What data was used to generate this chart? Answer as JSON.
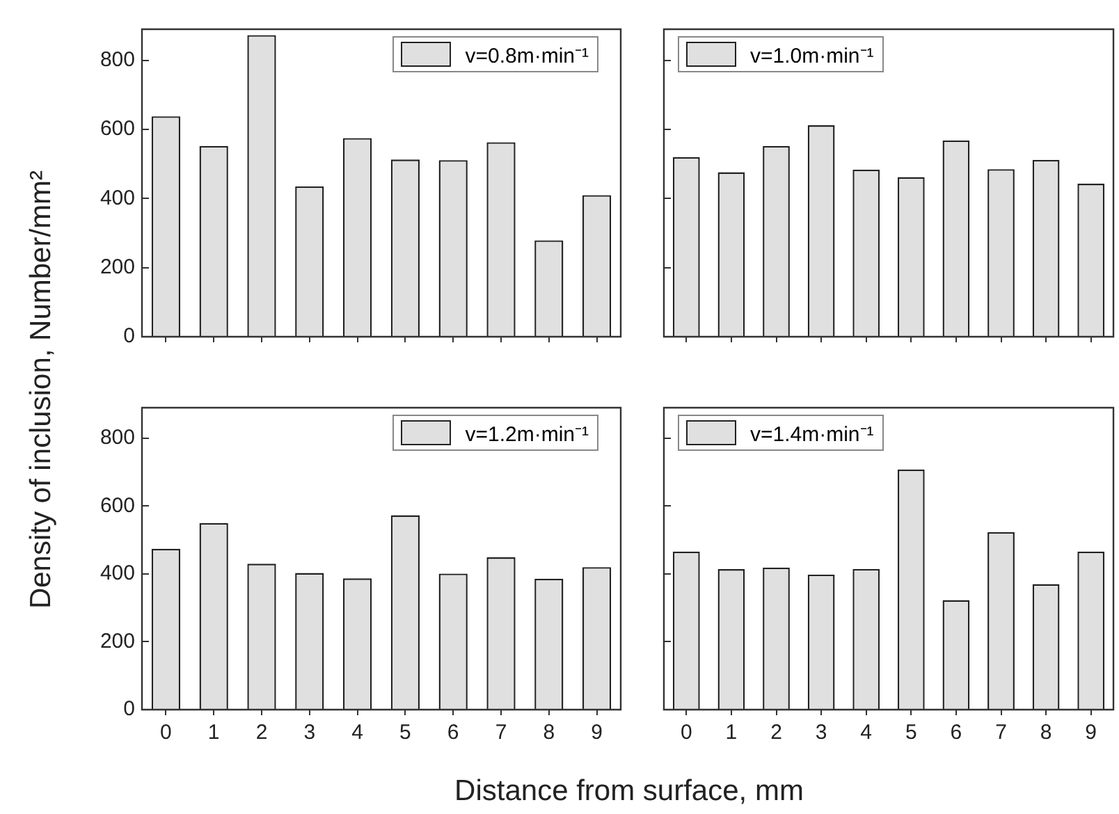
{
  "chart_data": [
    {
      "type": "bar",
      "categories": [
        "0",
        "1",
        "2",
        "3",
        "4",
        "5",
        "6",
        "7",
        "8",
        "9"
      ],
      "ylabel": "Density of inclusion, Number/mm²",
      "series": [
        {
          "name": "v=0.8m·min⁻¹",
          "color": "#e0e0e0",
          "values": [
            638,
            552,
            873,
            435,
            575,
            513,
            511,
            563,
            279,
            410
          ]
        }
      ],
      "ylim": [
        0,
        890
      ],
      "yticks": [
        0,
        200,
        400,
        600,
        800
      ],
      "legend": "top right",
      "tick_labels": "y"
    },
    {
      "type": "bar",
      "categories": [
        "0",
        "1",
        "2",
        "3",
        "4",
        "5",
        "6",
        "7",
        "8",
        "9"
      ],
      "series": [
        {
          "name": "v=1.0m·min⁻¹",
          "color": "#e0e0e0",
          "values": [
            520,
            476,
            552,
            612,
            484,
            462,
            568,
            485,
            512,
            443
          ]
        }
      ],
      "ylim": [
        0,
        890
      ],
      "yticks": [
        0,
        200,
        400,
        600,
        800
      ],
      "legend": "top left",
      "tick_labels": false
    },
    {
      "type": "bar",
      "categories": [
        "0",
        "1",
        "2",
        "3",
        "4",
        "5",
        "6",
        "7",
        "8",
        "9"
      ],
      "xlabel": "Distance from surface, mm",
      "series": [
        {
          "name": "v=1.2m·min⁻¹",
          "color": "#e0e0e0",
          "values": [
            474,
            550,
            430,
            403,
            387,
            573,
            401,
            449,
            386,
            420
          ]
        }
      ],
      "ylim": [
        0,
        890
      ],
      "yticks": [
        0,
        200,
        400,
        600,
        800
      ],
      "legend": "top right"
    },
    {
      "type": "bar",
      "categories": [
        "0",
        "1",
        "2",
        "3",
        "4",
        "5",
        "6",
        "7",
        "8",
        "9"
      ],
      "series": [
        {
          "name": "v=1.4m·min⁻¹",
          "color": "#e0e0e0",
          "values": [
            466,
            414,
            419,
            398,
            415,
            708,
            323,
            523,
            370,
            466
          ]
        }
      ],
      "ylim": [
        0,
        890
      ],
      "yticks": [
        0,
        200,
        400,
        600,
        800
      ],
      "legend": "top left",
      "tick_labels": "x"
    }
  ]
}
